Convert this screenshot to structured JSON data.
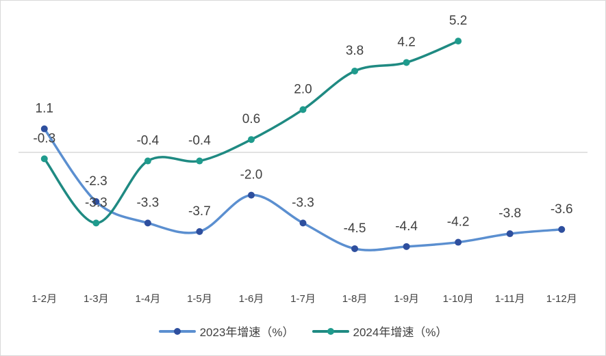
{
  "chart_data": {
    "type": "line",
    "categories": [
      "1-2月",
      "1-3月",
      "1-4月",
      "1-5月",
      "1-6月",
      "1-7月",
      "1-8月",
      "1-9月",
      "1-10月",
      "1-11月",
      "1-12月"
    ],
    "series": [
      {
        "name": "2023年增速（%）",
        "values": [
          1.1,
          -2.3,
          -3.3,
          -3.7,
          -2.0,
          -3.3,
          -4.5,
          -4.4,
          -4.2,
          -3.8,
          -3.6
        ],
        "line_color": "#5b8fd0",
        "marker_color": "#2e4f9e"
      },
      {
        "name": "2024年增速（%）",
        "values": [
          -0.3,
          -3.3,
          -0.4,
          -0.4,
          0.6,
          2.0,
          3.8,
          4.2,
          5.2,
          null,
          null
        ],
        "line_color": "#1f8a82",
        "marker_color": "#1f9b8d"
      }
    ],
    "ylim": [
      -6.8,
      6.8
    ],
    "grid": false,
    "zero_line": true,
    "smooth": true,
    "legend_position": "bottom"
  }
}
